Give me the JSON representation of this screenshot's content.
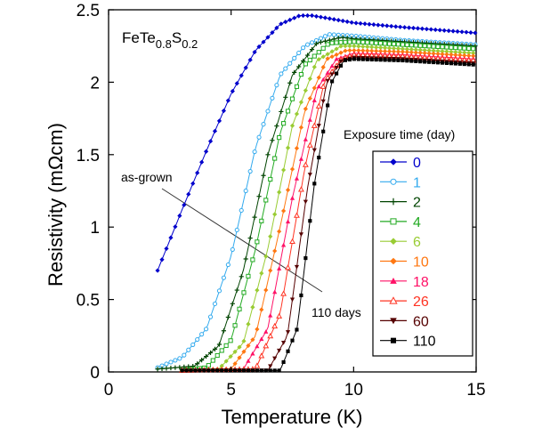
{
  "chart_data": {
    "type": "line",
    "title": "",
    "sample_label": {
      "base": "FeTe",
      "sub1": "0.8",
      "mid": "S",
      "sub2": "0.2"
    },
    "xlabel": "Temperature (K)",
    "ylabel": "Resistivity (mΩcm)",
    "xlim": [
      0,
      15
    ],
    "ylim": [
      0,
      2.5
    ],
    "xticks": [
      0,
      5,
      10,
      15
    ],
    "yticks": [
      0,
      0.5,
      1,
      1.5,
      2,
      2.5
    ],
    "xtick_labels": [
      "0",
      "5",
      "10",
      "15"
    ],
    "ytick_labels": [
      "0",
      "0.5",
      "1",
      "1.5",
      "2",
      "2.5"
    ],
    "grid": false,
    "legend": {
      "title": "Exposure time (day)",
      "position": "right"
    },
    "annotations": {
      "top": "as-grown",
      "bottom": "110 days"
    },
    "series": [
      {
        "name": "0",
        "color": "#0000cc",
        "marker": "diamond",
        "points": [
          [
            2.0,
            0.7
          ],
          [
            3.0,
            1.12
          ],
          [
            4.0,
            1.53
          ],
          [
            5.0,
            1.92
          ],
          [
            6.0,
            2.22
          ],
          [
            7.0,
            2.4
          ],
          [
            7.8,
            2.46
          ],
          [
            8.3,
            2.46
          ],
          [
            9.0,
            2.44
          ],
          [
            10.0,
            2.41
          ],
          [
            12.0,
            2.38
          ],
          [
            15.0,
            2.34
          ]
        ]
      },
      {
        "name": "1",
        "color": "#33aaee",
        "marker": "circle",
        "points": [
          [
            2.0,
            0.03
          ],
          [
            3.0,
            0.1
          ],
          [
            4.0,
            0.3
          ],
          [
            5.0,
            0.8
          ],
          [
            6.0,
            1.55
          ],
          [
            7.0,
            2.05
          ],
          [
            8.0,
            2.25
          ],
          [
            9.0,
            2.33
          ],
          [
            10.0,
            2.32
          ],
          [
            12.0,
            2.29
          ],
          [
            15.0,
            2.26
          ]
        ]
      },
      {
        "name": "2",
        "color": "#004400",
        "marker": "plus",
        "points": [
          [
            2.0,
            0.02
          ],
          [
            3.5,
            0.04
          ],
          [
            4.5,
            0.18
          ],
          [
            5.5,
            0.7
          ],
          [
            6.5,
            1.5
          ],
          [
            7.5,
            2.05
          ],
          [
            8.5,
            2.27
          ],
          [
            9.5,
            2.31
          ],
          [
            10.0,
            2.3
          ],
          [
            12.0,
            2.28
          ],
          [
            15.0,
            2.25
          ]
        ]
      },
      {
        "name": "4",
        "color": "#22aa22",
        "marker": "square",
        "points": [
          [
            3.0,
            0.01
          ],
          [
            4.0,
            0.03
          ],
          [
            5.0,
            0.22
          ],
          [
            6.0,
            0.85
          ],
          [
            7.0,
            1.65
          ],
          [
            8.0,
            2.12
          ],
          [
            9.0,
            2.27
          ],
          [
            10.0,
            2.28
          ],
          [
            12.0,
            2.26
          ],
          [
            15.0,
            2.23
          ]
        ]
      },
      {
        "name": "6",
        "color": "#99cc33",
        "marker": "diamond",
        "points": [
          [
            3.0,
            0.01
          ],
          [
            4.5,
            0.02
          ],
          [
            5.5,
            0.2
          ],
          [
            6.5,
            0.85
          ],
          [
            7.5,
            1.7
          ],
          [
            8.5,
            2.15
          ],
          [
            9.5,
            2.25
          ],
          [
            10.0,
            2.25
          ],
          [
            12.0,
            2.23
          ],
          [
            15.0,
            2.2
          ]
        ]
      },
      {
        "name": "10",
        "color": "#ff7711",
        "marker": "diamond",
        "points": [
          [
            3.0,
            0.01
          ],
          [
            5.0,
            0.02
          ],
          [
            6.0,
            0.25
          ],
          [
            7.0,
            1.0
          ],
          [
            8.0,
            1.8
          ],
          [
            8.9,
            2.16
          ],
          [
            9.7,
            2.22
          ],
          [
            10.0,
            2.22
          ],
          [
            12.0,
            2.21
          ],
          [
            15.0,
            2.18
          ]
        ]
      },
      {
        "name": "18",
        "color": "#ff1166",
        "marker": "triangle",
        "points": [
          [
            3.0,
            0.01
          ],
          [
            5.5,
            0.02
          ],
          [
            6.5,
            0.3
          ],
          [
            7.5,
            1.2
          ],
          [
            8.5,
            1.95
          ],
          [
            9.3,
            2.16
          ],
          [
            10.0,
            2.2
          ],
          [
            12.0,
            2.19
          ],
          [
            15.0,
            2.16
          ]
        ]
      },
      {
        "name": "26",
        "color": "#ff3322",
        "marker": "triangle-open",
        "points": [
          [
            3.0,
            0.01
          ],
          [
            6.0,
            0.02
          ],
          [
            7.0,
            0.4
          ],
          [
            8.0,
            1.4
          ],
          [
            8.8,
            2.0
          ],
          [
            9.5,
            2.16
          ],
          [
            10.0,
            2.19
          ],
          [
            12.0,
            2.18
          ],
          [
            15.0,
            2.15
          ]
        ]
      },
      {
        "name": "60",
        "color": "#550000",
        "marker": "triangle-down",
        "points": [
          [
            3.0,
            0.01
          ],
          [
            6.5,
            0.01
          ],
          [
            7.3,
            0.25
          ],
          [
            8.1,
            1.25
          ],
          [
            8.9,
            2.0
          ],
          [
            9.5,
            2.15
          ],
          [
            10.0,
            2.17
          ],
          [
            12.0,
            2.16
          ],
          [
            15.0,
            2.13
          ]
        ]
      },
      {
        "name": "110",
        "color": "#000000",
        "marker": "square",
        "points": [
          [
            3.0,
            0.01
          ],
          [
            7.0,
            0.01
          ],
          [
            7.7,
            0.3
          ],
          [
            8.4,
            1.3
          ],
          [
            9.1,
            2.0
          ],
          [
            9.6,
            2.15
          ],
          [
            10.0,
            2.16
          ],
          [
            12.0,
            2.15
          ],
          [
            15.0,
            2.12
          ]
        ]
      }
    ]
  }
}
